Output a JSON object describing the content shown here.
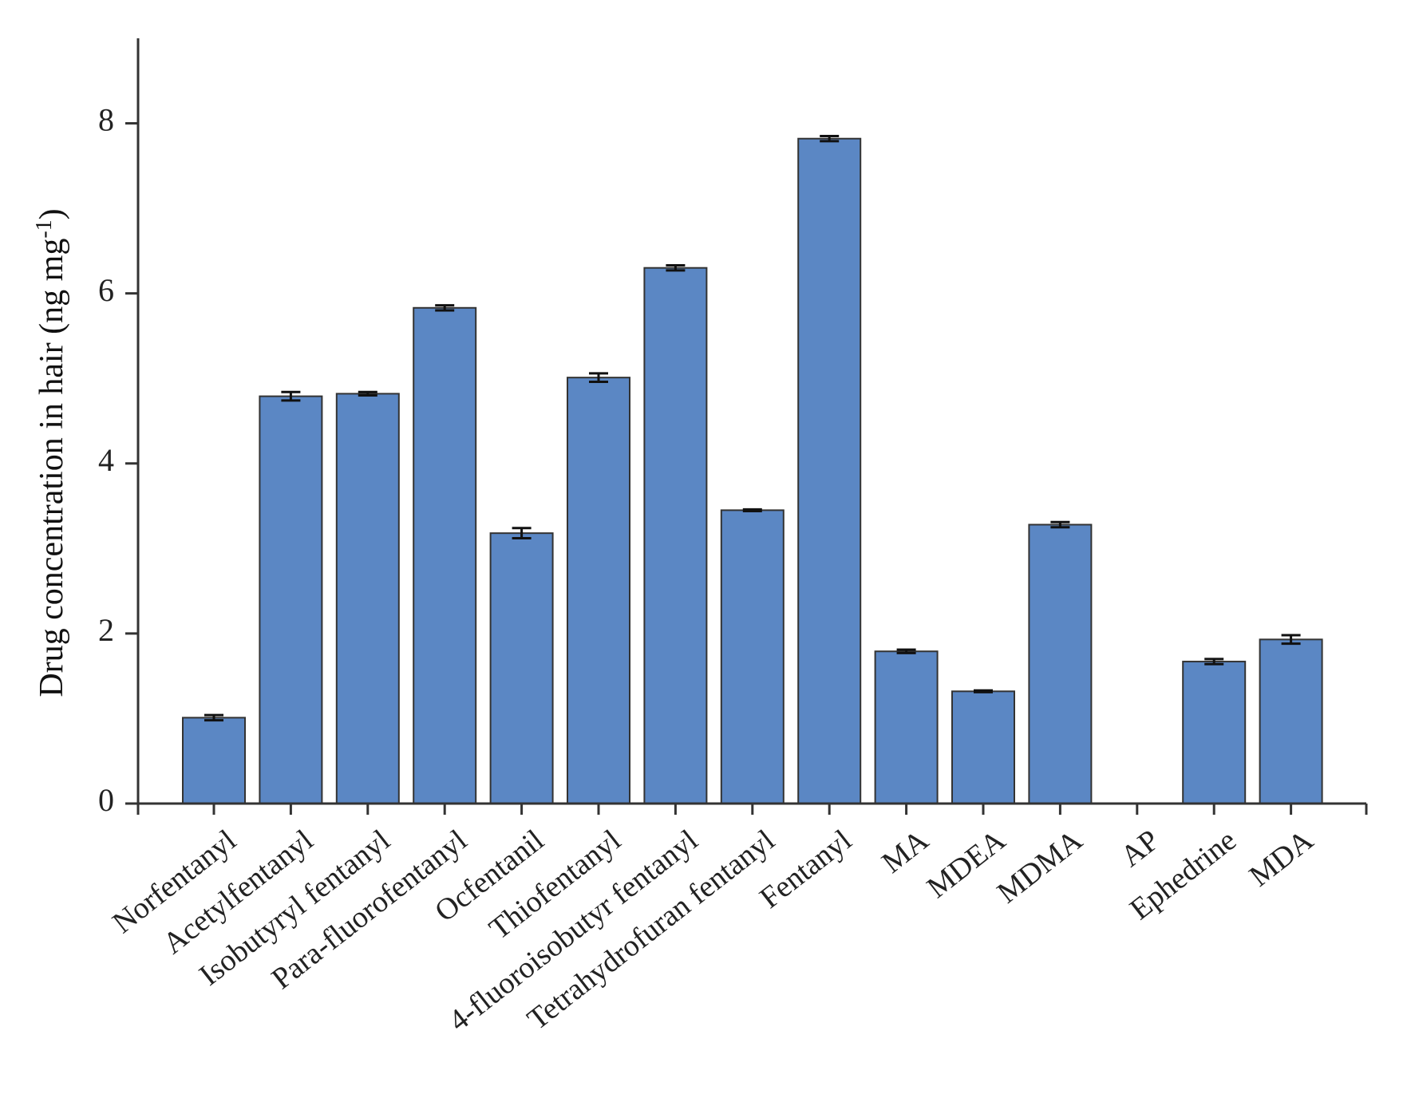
{
  "chart_data": {
    "type": "bar",
    "categories": [
      "Norfentanyl",
      "Acetylfentanyl",
      "Isobutyryl fentanyl",
      "Para-fluorofentanyl",
      "Ocfentanil",
      "Thiofentanyl",
      "4-fluoroisobutyr fentanyl",
      "Tetrahydrofuran fentanyl",
      "Fentanyl",
      "MA",
      "MDEA",
      "MDMA",
      "AP",
      "Ephedrine",
      "MDA"
    ],
    "values": [
      1.01,
      4.79,
      4.82,
      5.83,
      3.18,
      5.01,
      6.3,
      3.45,
      7.82,
      1.79,
      1.32,
      3.28,
      0,
      1.67,
      1.93
    ],
    "errors": [
      0.03,
      0.05,
      0.02,
      0.03,
      0.06,
      0.05,
      0.03,
      0.01,
      0.03,
      0.02,
      0.01,
      0.03,
      0,
      0.03,
      0.05
    ],
    "ylabel_main": "Drug concentration in hair (ng mg",
    "ylabel_sup": "-1",
    "ylabel_end": ")",
    "ylim": [
      0,
      9
    ],
    "yticks": [
      0,
      2,
      4,
      6,
      8
    ],
    "bar_color": "#5b87c4",
    "grid": false
  }
}
